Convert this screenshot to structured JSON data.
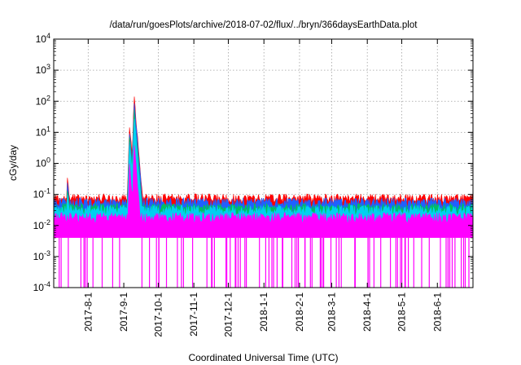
{
  "chart_data": {
    "type": "line",
    "title": "/data/run/goesPlots/archive/2018-07-02/flux/../bryn/366daysEarthData.plot",
    "xlabel": "Coordinated Universal Time (UTC)",
    "ylabel": "cGy/day",
    "yscale": "log",
    "ylim": [
      0.0001,
      10000
    ],
    "xlim": [
      "2017-07-02",
      "2018-07-02"
    ],
    "grid": true,
    "y_ticks": [
      {
        "value": 0.0001,
        "base": "10",
        "exp": "-4"
      },
      {
        "value": 0.001,
        "base": "10",
        "exp": "-3"
      },
      {
        "value": 0.01,
        "base": "10",
        "exp": "-2"
      },
      {
        "value": 0.1,
        "base": "10",
        "exp": "-1"
      },
      {
        "value": 1,
        "base": "10",
        "exp": "0"
      },
      {
        "value": 10,
        "base": "10",
        "exp": "1"
      },
      {
        "value": 100,
        "base": "10",
        "exp": "2"
      },
      {
        "value": 1000,
        "base": "10",
        "exp": "3"
      },
      {
        "value": 10000,
        "base": "10",
        "exp": "4"
      }
    ],
    "x_ticks": [
      {
        "date": "2017-08-01",
        "label": "2017-8-1"
      },
      {
        "date": "2017-09-01",
        "label": "2017-9-1"
      },
      {
        "date": "2017-10-01",
        "label": "2017-10-1"
      },
      {
        "date": "2017-11-01",
        "label": "2017-11-1"
      },
      {
        "date": "2017-12-01",
        "label": "2017-12-1"
      },
      {
        "date": "2018-01-01",
        "label": "2018-1-1"
      },
      {
        "date": "2018-02-01",
        "label": "2018-2-1"
      },
      {
        "date": "2018-03-01",
        "label": "2018-3-1"
      },
      {
        "date": "2018-04-01",
        "label": "2018-4-1"
      },
      {
        "date": "2018-05-01",
        "label": "2018-5-1"
      },
      {
        "date": "2018-06-01",
        "label": "2018-6-1"
      }
    ],
    "series": [
      {
        "color": "#ff0000",
        "base": 0.08,
        "events": [
          {
            "date": "2017-07-14",
            "peak": 0.4
          },
          {
            "date": "2017-07-23",
            "peak": 0.12
          },
          {
            "date": "2017-09-06",
            "peak": 20
          },
          {
            "date": "2017-09-10",
            "peak": 170
          }
        ]
      },
      {
        "color": "#2060ff",
        "base": 0.06,
        "events": [
          {
            "date": "2017-07-14",
            "peak": 0.28
          },
          {
            "date": "2017-09-06",
            "peak": 12
          },
          {
            "date": "2017-09-10",
            "peak": 110
          }
        ]
      },
      {
        "color": "#00c060",
        "base": 0.04,
        "events": [
          {
            "date": "2017-07-14",
            "peak": 0.2
          },
          {
            "date": "2017-09-06",
            "peak": 8
          },
          {
            "date": "2017-09-10",
            "peak": 60
          }
        ]
      },
      {
        "color": "#00d0f0",
        "base": 0.035,
        "events": [
          {
            "date": "2017-07-14",
            "peak": 0.15
          },
          {
            "date": "2017-09-06",
            "peak": 6
          },
          {
            "date": "2017-09-10",
            "peak": 40
          }
        ]
      },
      {
        "color": "#ff00ff",
        "base": 0.02,
        "floor": 0.004,
        "events": [
          {
            "date": "2017-09-06",
            "peak": 1
          },
          {
            "date": "2017-09-10",
            "peak": 5
          }
        ]
      }
    ]
  }
}
